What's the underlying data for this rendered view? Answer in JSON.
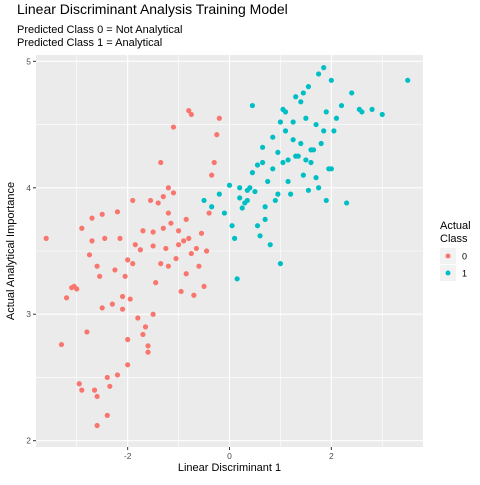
{
  "chart_data": {
    "type": "scatter",
    "title": "Linear Discriminant Analysis Training Model",
    "subtitle_lines": [
      "Predicted Class 0 = Not Analytical",
      "Predicted Class 1 = Analytical"
    ],
    "xlabel": "Linear Discriminant 1",
    "ylabel": "Actual Analytical Importance",
    "xlim": [
      -3.8,
      3.8
    ],
    "ylim": [
      1.95,
      5.05
    ],
    "x_ticks": [
      -2,
      0,
      2
    ],
    "x_tick_labels": [
      "-2",
      "0",
      "2"
    ],
    "y_ticks": [
      2,
      3,
      4,
      5
    ],
    "y_tick_labels": [
      "2",
      "3",
      "4",
      "5"
    ],
    "grid": true,
    "legend": {
      "title_lines": [
        "Actual",
        "Class"
      ],
      "position": "right"
    },
    "colors": {
      "panel": "#ebebeb",
      "grid": "#ffffff",
      "class0": "#F8766D",
      "class1": "#00BFC4",
      "axis_text": "#4d4d4d"
    },
    "series": [
      {
        "name": "0",
        "x": [
          -3.6,
          -3.3,
          -3.2,
          -3.1,
          -3.05,
          -3.0,
          -2.95,
          -2.9,
          -2.9,
          -2.8,
          -2.75,
          -2.7,
          -2.65,
          -2.6,
          -2.6,
          -2.55,
          -2.5,
          -2.5,
          -2.45,
          -2.4,
          -2.4,
          -2.35,
          -2.3,
          -2.25,
          -2.2,
          -2.2,
          -2.15,
          -2.1,
          -2.1,
          -2.05,
          -2.0,
          -2.0,
          -1.95,
          -1.9,
          -1.9,
          -1.85,
          -1.8,
          -1.75,
          -1.7,
          -1.65,
          -1.6,
          -1.6,
          -1.55,
          -1.5,
          -1.5,
          -1.45,
          -1.4,
          -1.35,
          -1.3,
          -1.3,
          -1.25,
          -1.2,
          -1.2,
          -1.15,
          -1.1,
          -1.05,
          -1.0,
          -1.0,
          -0.95,
          -0.9,
          -0.85,
          -0.85,
          -0.8,
          -0.75,
          -0.7,
          -0.65,
          -0.6,
          -0.55,
          -0.5,
          -0.45,
          -0.4,
          -0.35,
          -0.3,
          -0.25,
          -0.2,
          -2.6,
          -2.0,
          -1.7,
          -1.5,
          -0.75,
          -1.2,
          -0.8,
          -2.7,
          -1.35,
          -1.1
        ],
        "y": [
          3.6,
          2.76,
          3.13,
          3.21,
          3.22,
          3.2,
          2.45,
          2.4,
          3.68,
          2.86,
          3.47,
          3.58,
          2.4,
          2.35,
          3.38,
          3.3,
          3.05,
          3.79,
          3.6,
          2.2,
          2.5,
          2.43,
          3.08,
          3.35,
          2.52,
          3.81,
          3.6,
          3.14,
          3.04,
          3.3,
          3.43,
          2.6,
          3.12,
          3.4,
          3.9,
          3.55,
          2.97,
          3.51,
          3.66,
          2.9,
          2.7,
          2.75,
          3.9,
          3.54,
          3.65,
          3.25,
          3.88,
          3.4,
          3.68,
          3.93,
          3.52,
          3.38,
          3.8,
          3.72,
          3.96,
          3.44,
          3.55,
          3.66,
          3.18,
          3.58,
          3.32,
          3.75,
          3.6,
          3.48,
          3.15,
          3.52,
          3.38,
          3.64,
          3.22,
          3.5,
          3.8,
          4.1,
          4.2,
          4.42,
          4.55,
          2.12,
          2.8,
          2.84,
          3.0,
          4.58,
          4.0,
          4.61,
          3.76,
          4.2,
          4.48
        ],
        "color": "#F8766D"
      },
      {
        "name": "1",
        "x": [
          -0.5,
          -0.35,
          -0.2,
          -0.1,
          0.0,
          0.05,
          0.1,
          0.15,
          0.2,
          0.25,
          0.3,
          0.35,
          0.4,
          0.45,
          0.5,
          0.55,
          0.6,
          0.65,
          0.7,
          0.75,
          0.8,
          0.85,
          0.9,
          0.95,
          1.0,
          1.05,
          1.1,
          1.15,
          1.2,
          1.25,
          1.3,
          1.35,
          1.4,
          1.45,
          1.5,
          1.55,
          1.6,
          1.65,
          1.7,
          1.75,
          1.8,
          1.85,
          1.9,
          1.95,
          2.0,
          2.05,
          2.2,
          2.4,
          2.6,
          2.8,
          3.0,
          3.5,
          1.05,
          1.4,
          1.7,
          2.3,
          2.55,
          0.45,
          0.7,
          1.0,
          1.25,
          1.6,
          1.9,
          0.2,
          0.55,
          0.85,
          1.15,
          1.45,
          1.75,
          2.1,
          0.35,
          0.65,
          0.95,
          1.3,
          1.55,
          1.85,
          2.0,
          1.1,
          1.5
        ],
        "y": [
          3.9,
          3.85,
          3.95,
          3.8,
          4.02,
          3.7,
          3.6,
          3.28,
          3.92,
          3.84,
          3.88,
          3.98,
          4.0,
          4.12,
          3.97,
          4.18,
          3.62,
          4.32,
          3.75,
          4.05,
          3.55,
          4.4,
          3.9,
          4.28,
          3.4,
          4.62,
          4.45,
          4.22,
          3.95,
          4.38,
          4.72,
          4.25,
          4.68,
          4.1,
          4.55,
          4.8,
          4.2,
          4.3,
          4.5,
          4.0,
          4.35,
          4.95,
          4.6,
          4.15,
          4.85,
          4.45,
          4.65,
          4.75,
          4.6,
          4.62,
          4.58,
          4.85,
          4.2,
          4.35,
          4.08,
          3.88,
          4.62,
          4.65,
          3.85,
          4.52,
          4.52,
          4.3,
          3.9,
          4.0,
          3.7,
          4.15,
          4.05,
          4.75,
          4.9,
          4.55,
          3.9,
          4.2,
          3.95,
          4.25,
          3.98,
          4.45,
          4.15,
          4.6,
          4.22
        ],
        "color": "#00BFC4"
      }
    ]
  }
}
